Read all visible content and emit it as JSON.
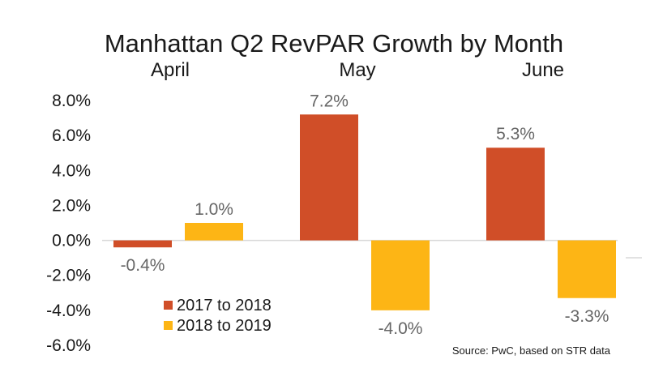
{
  "chart_data": {
    "type": "bar",
    "title": "Manhattan Q2 RevPAR Growth by Month",
    "categories": [
      "April",
      "May",
      "June"
    ],
    "series": [
      {
        "name": "2017 to 2018",
        "values": [
          -0.4,
          7.2,
          5.3
        ],
        "labels": [
          "-0.4%",
          "7.2%",
          "5.3%"
        ],
        "color": "#D04E28"
      },
      {
        "name": "2018 to 2019",
        "values": [
          1.0,
          -4.0,
          -3.3
        ],
        "labels": [
          "1.0%",
          "-4.0%",
          "-3.3%"
        ],
        "color": "#FDB515"
      }
    ],
    "yticks": [
      8,
      6,
      4,
      2,
      0,
      -2,
      -4,
      -6
    ],
    "ytick_labels": [
      "8.0%",
      "6.0%",
      "4.0%",
      "2.0%",
      "0.0%",
      "-2.0%",
      "-4.0%",
      "-6.0%"
    ],
    "ylim": [
      -6,
      8
    ],
    "grid": false,
    "legend_position": "bottom-left",
    "source": "Source: PwC, based on STR data"
  }
}
